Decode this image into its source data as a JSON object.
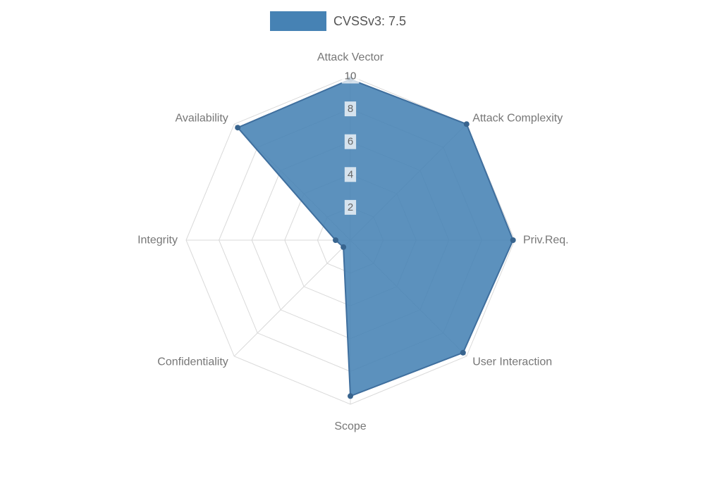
{
  "legend": {
    "label": "CVSSv3: 7.5",
    "swatch_color": "#4682b4"
  },
  "chart_data": {
    "type": "radar",
    "categories": [
      "Attack Vector",
      "Attack Complexity",
      "Priv.Req.",
      "User Interaction",
      "Scope",
      "Confidentiality",
      "Integrity",
      "Availability"
    ],
    "series": [
      {
        "name": "CVSSv3: 7.5",
        "values": [
          9.8,
          10,
          9.9,
          9.7,
          9.5,
          0.6,
          0.9,
          9.7
        ]
      }
    ],
    "ticks": [
      2,
      4,
      6,
      8,
      10
    ],
    "rlim": [
      0,
      10
    ],
    "grid": true,
    "legend_position": "top",
    "colors": {
      "series_fill": "#4682b4",
      "series_stroke": "#3f6f9e",
      "series_point": "#38648e",
      "grid": "#d9d9d9",
      "tick_text": "#666666",
      "tick_backdrop": "rgba(255,255,255,0.75)",
      "axis_label": "#777777"
    }
  }
}
